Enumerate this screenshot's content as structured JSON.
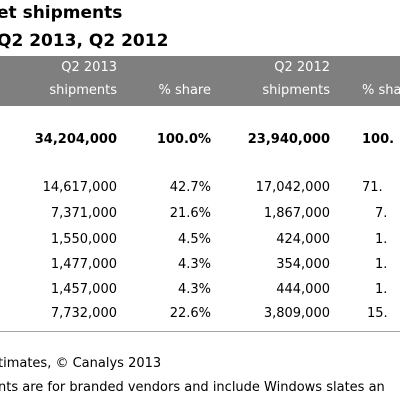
{
  "title": "et shipments",
  "subtitle": "Q2 2013, Q2 2012",
  "table": {
    "group_q2_2013": "Q2 2013",
    "group_q2_2012": "Q2 2012",
    "col_shipments_2013": "shipments",
    "col_share_2013": "% share",
    "col_shipments_2012": "shipments",
    "col_share_2012": "% shar",
    "total": [
      "34,204,000",
      "100.0%",
      "23,940,000",
      "100."
    ],
    "rows": [
      [
        "14,617,000",
        "42.7%",
        "17,042,000",
        "71."
      ],
      [
        "7,371,000",
        "21.6%",
        "1,867,000",
        "7."
      ],
      [
        "1,550,000",
        "4.5%",
        "424,000",
        "1."
      ],
      [
        "1,477,000",
        "4.3%",
        "354,000",
        "1."
      ],
      [
        "1,457,000",
        "4.3%",
        "444,000",
        "1."
      ],
      [
        "7,732,000",
        "22.6%",
        "3,809,000",
        "15."
      ]
    ]
  },
  "footnotes": {
    "line1": "timates, © Canalys 2013",
    "line2": "nts are for branded vendors and include Windows slates an"
  },
  "colors": {
    "header_band": "#7f7f7f",
    "header_text": "#ffffff",
    "divider": "#a6a6a6"
  }
}
